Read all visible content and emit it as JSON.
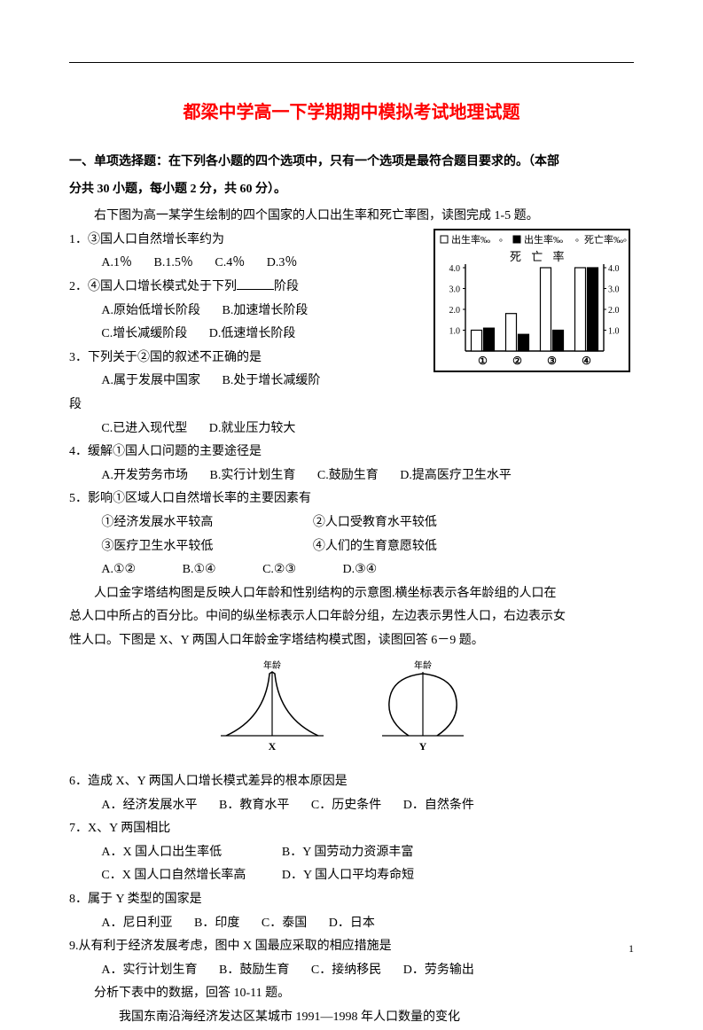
{
  "title": "都梁中学高一下学期期中模拟考试地理试题",
  "section_header_1": "一、单项选择题：在下列各小题的四个选项中，只有一个选项是最符合题目要求的。（本部",
  "section_header_2": "分共 30 小题，每小题 2 分，共 60 分）。",
  "intro": "右下图为高一某学生绘制的四个国家的人口出生率和死亡率图，读图完成 1-5 题。",
  "q1": {
    "stem": "1．③国人口自然增长率约为",
    "opts": {
      "a": "A.1％",
      "b": "B.1.5％",
      "c": "C.4％",
      "d": "D.3％"
    }
  },
  "q2": {
    "stem_a": "2．④国人口增长模式处于下列",
    "stem_b": "阶段",
    "opts": {
      "a": "A.原始低增长阶段",
      "b": "B.加速增长阶段",
      "c": "C.增长减缓阶段",
      "d": "D.低速增长阶段"
    }
  },
  "q3": {
    "stem": "3．下列关于②国的叙述不正确的是",
    "opts": {
      "a": "A.属于发展中国家",
      "b": "B.处于增长减缓阶",
      "b2": "段",
      "c": "C.已进入现代型",
      "d": "D.就业压力较大"
    }
  },
  "q4": {
    "stem": "4．缓解①国人口问题的主要途径是",
    "opts": {
      "a": "A.开发劳务市场",
      "b": "B.实行计划生育",
      "c": "C.鼓励生育",
      "d": "D.提高医疗卫生水平"
    }
  },
  "q5": {
    "stem": "5．影响①区域人口自然增长率的主要因素有",
    "subs": {
      "s1": "①经济发展水平较高",
      "s2": "②人口受教育水平较低",
      "s3": "③医疗卫生水平较低",
      "s4": "④人们的生育意愿较低"
    },
    "opts": {
      "a": "A.①②",
      "b": "B.①④",
      "c": "C.②③",
      "d": "D.③④"
    }
  },
  "passage2_1": "人口金字塔结构图是反映人口年龄和性别结构的示意图.横坐标表示各年龄组的人口在",
  "passage2_2": "总人口中所占的百分比。中间的纵坐标表示人口年龄分组，左边表示男性人口，右边表示女",
  "passage2_3": "性人口。下图是 X、Y 两国人口年龄金字塔结构模式图，读图回答 6－9 题。",
  "pyramid": {
    "age_label": "年龄",
    "x_label": "X",
    "y_label": "Y"
  },
  "q6": {
    "stem": "6．造成 X、Y 两国人口增长模式差异的根本原因是",
    "opts": {
      "a": "A．经济发展水平",
      "b": "B．教育水平",
      "c": "C．历史条件",
      "d": "D．自然条件"
    }
  },
  "q7": {
    "stem": "7．X、Y 两国相比",
    "opts": {
      "a": "A．X 国人口出生率低",
      "b": "B．Y 国劳动力资源丰富",
      "c": "C．X 国人口自然增长率高",
      "d": "D．Y 国人口平均寿命短"
    }
  },
  "q8": {
    "stem": "8．属于 Y 类型的国家是",
    "opts": {
      "a": "A．尼日利亚",
      "b": "B．印度",
      "c": "C．泰国",
      "d": "D．日本"
    }
  },
  "q9": {
    "stem": "9.从有利于经济发展考虑，图中 X 国最应采取的相应措施是",
    "opts": {
      "a": "A．实行计划生育",
      "b": "B．鼓励生育",
      "c": "C．接纳移民",
      "d": "D．劳务输出"
    }
  },
  "footer1": "分析下表中的数据，回答 10-11 题。",
  "footer2": "我国东南沿海经济发达区某城市 1991—1998 年人口数量的变化",
  "page_num": "1",
  "chart1": {
    "type": "bar",
    "categories": [
      "①",
      "②",
      "③",
      "④"
    ],
    "birth_values": [
      1.0,
      1.8,
      4.0,
      4.3
    ],
    "death_values": [
      1.1,
      0.8,
      1.0,
      4.0
    ],
    "legend": {
      "l1": "出生率",
      "l2": "出生率",
      "l3": "死亡率",
      "l4": "死 亡 率"
    },
    "ylim": [
      0,
      4.0
    ],
    "yticks": [
      1.0,
      2.0,
      3.0,
      4.0
    ],
    "bar_colors": {
      "birth": "#ffffff",
      "death": "#000000"
    },
    "border_color": "#000000",
    "background_color": "#ffffff",
    "fontsize": 11
  }
}
